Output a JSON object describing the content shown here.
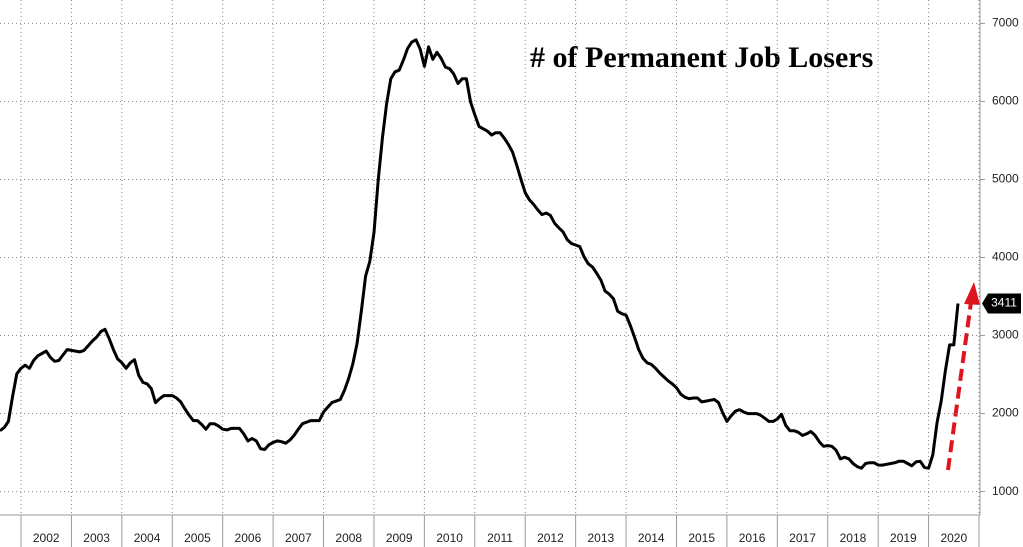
{
  "chart_data": {
    "type": "line",
    "title": "# of Permanent Job Losers",
    "categories": [
      null,
      null,
      null,
      null,
      null,
      null,
      null,
      null,
      null,
      null,
      null,
      "2002",
      null,
      null,
      null,
      null,
      null,
      null,
      null,
      null,
      null,
      null,
      null,
      "2003",
      null,
      null,
      null,
      null,
      null,
      null,
      null,
      null,
      null,
      null,
      null,
      "2004",
      null,
      null,
      null,
      null,
      null,
      null,
      null,
      null,
      null,
      null,
      null,
      "2005",
      null,
      null,
      null,
      null,
      null,
      null,
      null,
      null,
      null,
      null,
      null,
      "2006",
      null,
      null,
      null,
      null,
      null,
      null,
      null,
      null,
      null,
      null,
      null,
      "2007",
      null,
      null,
      null,
      null,
      null,
      null,
      null,
      null,
      null,
      null,
      null,
      "2008",
      null,
      null,
      null,
      null,
      null,
      null,
      null,
      null,
      null,
      null,
      null,
      "2009",
      null,
      null,
      null,
      null,
      null,
      null,
      null,
      null,
      null,
      null,
      null,
      "2010",
      null,
      null,
      null,
      null,
      null,
      null,
      null,
      null,
      null,
      null,
      null,
      "2011",
      null,
      null,
      null,
      null,
      null,
      null,
      null,
      null,
      null,
      null,
      null,
      "2012",
      null,
      null,
      null,
      null,
      null,
      null,
      null,
      null,
      null,
      null,
      null,
      "2013",
      null,
      null,
      null,
      null,
      null,
      null,
      null,
      null,
      null,
      null,
      null,
      "2014",
      null,
      null,
      null,
      null,
      null,
      null,
      null,
      null,
      null,
      null,
      null,
      "2015",
      null,
      null,
      null,
      null,
      null,
      null,
      null,
      null,
      null,
      null,
      null,
      "2016",
      null,
      null,
      null,
      null,
      null,
      null,
      null,
      null,
      null,
      null,
      null,
      "2017",
      null,
      null,
      null,
      null,
      null,
      null,
      null,
      null,
      null,
      null,
      null,
      "2018",
      null,
      null,
      null,
      null,
      null,
      null,
      null,
      null,
      null,
      null,
      null,
      "2019",
      null,
      null,
      null,
      null,
      null,
      null,
      null,
      null,
      null,
      null,
      null,
      "2020",
      null
    ],
    "series": [
      {
        "color": "#000000",
        "values": [
          1780,
          1820,
          1900,
          2220,
          2510,
          2580,
          2620,
          2580,
          2680,
          2740,
          2770,
          2800,
          2720,
          2670,
          2680,
          2750,
          2820,
          2810,
          2800,
          2790,
          2810,
          2870,
          2930,
          2980,
          3050,
          3080,
          2960,
          2820,
          2700,
          2650,
          2580,
          2650,
          2690,
          2490,
          2400,
          2380,
          2320,
          2140,
          2190,
          2230,
          2230,
          2230,
          2200,
          2150,
          2060,
          1980,
          1910,
          1910,
          1860,
          1800,
          1870,
          1870,
          1840,
          1800,
          1790,
          1810,
          1810,
          1810,
          1740,
          1650,
          1680,
          1650,
          1550,
          1540,
          1600,
          1630,
          1650,
          1640,
          1620,
          1660,
          1720,
          1800,
          1870,
          1890,
          1910,
          1910,
          1910,
          2020,
          2080,
          2140,
          2160,
          2180,
          2300,
          2450,
          2640,
          2900,
          3320,
          3760,
          3950,
          4320,
          4990,
          5530,
          5970,
          6290,
          6380,
          6400,
          6530,
          6680,
          6760,
          6790,
          6670,
          6450,
          6700,
          6540,
          6630,
          6550,
          6440,
          6420,
          6350,
          6230,
          6290,
          6290,
          5990,
          5830,
          5680,
          5650,
          5620,
          5570,
          5600,
          5600,
          5530,
          5450,
          5350,
          5180,
          5000,
          4830,
          4740,
          4680,
          4610,
          4550,
          4570,
          4540,
          4440,
          4380,
          4330,
          4230,
          4180,
          4160,
          4140,
          4010,
          3920,
          3880,
          3800,
          3710,
          3570,
          3530,
          3470,
          3310,
          3280,
          3260,
          3130,
          2980,
          2820,
          2710,
          2650,
          2630,
          2580,
          2520,
          2470,
          2420,
          2380,
          2330,
          2250,
          2210,
          2190,
          2200,
          2200,
          2150,
          2160,
          2170,
          2180,
          2140,
          2010,
          1900,
          1970,
          2030,
          2050,
          2020,
          2000,
          2000,
          2000,
          1980,
          1940,
          1900,
          1900,
          1930,
          1990,
          1850,
          1780,
          1780,
          1760,
          1720,
          1740,
          1770,
          1720,
          1640,
          1580,
          1590,
          1580,
          1530,
          1420,
          1440,
          1420,
          1360,
          1320,
          1300,
          1360,
          1370,
          1370,
          1340,
          1340,
          1350,
          1360,
          1370,
          1390,
          1390,
          1360,
          1330,
          1380,
          1390,
          1310,
          1300,
          1470,
          1880,
          2160,
          2550,
          2880,
          2880,
          3411
        ]
      }
    ],
    "ylim": [
      700,
      7300
    ],
    "yticks": [
      1000,
      2000,
      3000,
      4000,
      5000,
      6000,
      7000
    ],
    "grid": true
  }
}
